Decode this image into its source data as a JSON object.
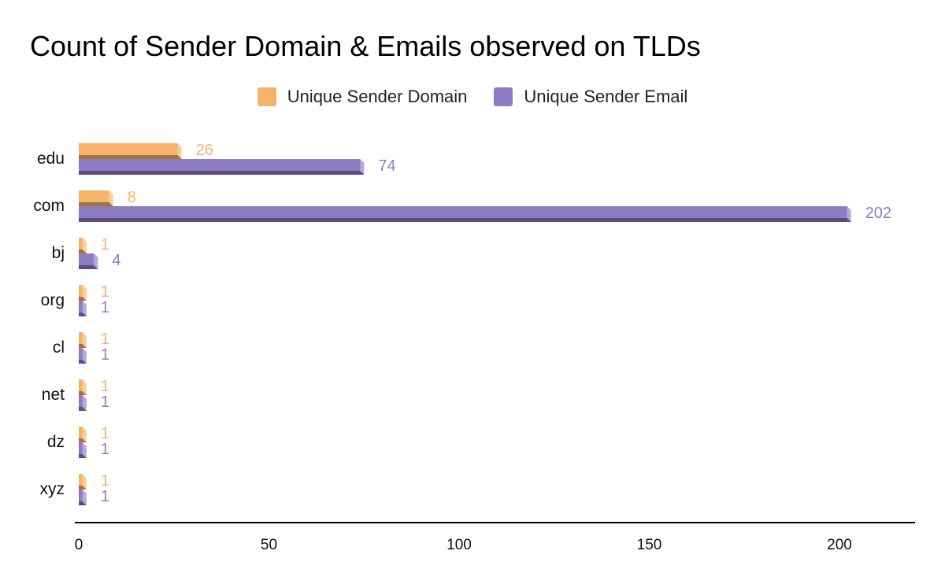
{
  "chart_data": {
    "type": "bar",
    "orientation": "horizontal",
    "title": "Count of Sender Domain & Emails observed on TLDs",
    "categories": [
      "edu",
      "com",
      "bj",
      "org",
      "cl",
      "net",
      "dz",
      "xyz"
    ],
    "series": [
      {
        "name": "Unique Sender Domain",
        "color": "#F6B26B",
        "values": [
          26,
          8,
          1,
          1,
          1,
          1,
          1,
          1
        ]
      },
      {
        "name": "Unique Sender Email",
        "color": "#8E7CC3",
        "values": [
          74,
          202,
          4,
          1,
          1,
          1,
          1,
          1
        ]
      }
    ],
    "x_ticks": [
      0,
      50,
      100,
      150,
      200
    ],
    "xlim": [
      0,
      220
    ],
    "xlabel": "",
    "ylabel": "",
    "grid": false,
    "legend_position": "top"
  }
}
